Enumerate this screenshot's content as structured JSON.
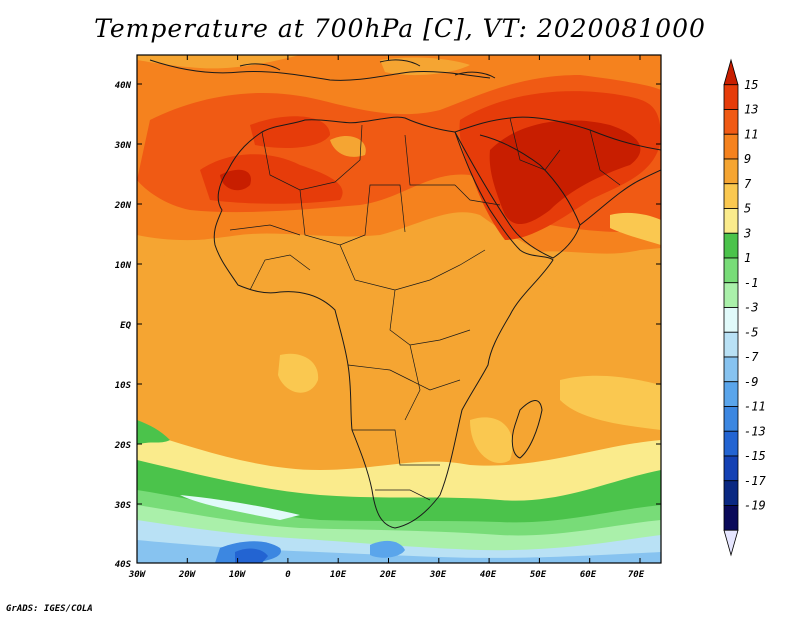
{
  "title": "Temperature at 700hPa [C], VT: 2020081000",
  "credit": "GrADS: IGES/COLA",
  "map": {
    "lat_ticks": [
      "40N",
      "30N",
      "20N",
      "10N",
      "EQ",
      "10S",
      "20S",
      "30S",
      "40S"
    ],
    "lon_ticks": [
      "30W",
      "20W",
      "10W",
      "0",
      "10E",
      "20E",
      "30E",
      "40E",
      "50E",
      "60E",
      "70E"
    ]
  },
  "legend": {
    "labels": [
      "15",
      "13",
      "11",
      "9",
      "7",
      "5",
      "3",
      "1",
      "-1",
      "-3",
      "-5",
      "-7",
      "-9",
      "-11",
      "-13",
      "-15",
      "-17",
      "-19"
    ],
    "colors": [
      "#c81e00",
      "#e63c0a",
      "#f05a14",
      "#f5821e",
      "#f5a532",
      "#fac850",
      "#faeb8c",
      "#4bc34b",
      "#78dc78",
      "#aaf0aa",
      "#e1fafa",
      "#b9e1f5",
      "#87c3f0",
      "#5aa5eb",
      "#3c87e1",
      "#2364d2",
      "#1441b4",
      "#0a2882",
      "#0a0a5a",
      "#e6e6ff"
    ]
  }
}
